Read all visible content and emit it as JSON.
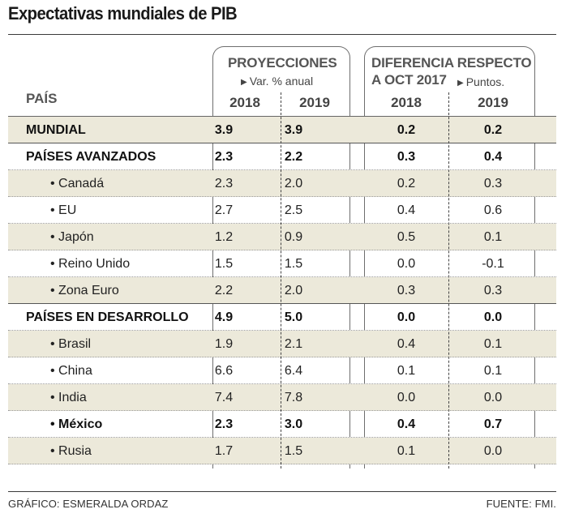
{
  "title": "Expectativas mundiales de PIB",
  "headers": {
    "pais": "PAÍS",
    "group1_title": "PROYECCIONES",
    "group1_sub": "Var. % anual",
    "group2_title_line1": "DIFERENCIA RESPECTO",
    "group2_title_line2": "A OCT 2017",
    "group2_sub": "Puntos.",
    "year_2018": "2018",
    "year_2019": "2019"
  },
  "chart_data": {
    "type": "table",
    "title": "Expectativas mundiales de PIB",
    "columns": [
      "PAÍS",
      "PROYECCIONES 2018",
      "PROYECCIONES 2019",
      "DIFERENCIA RESPECTO A OCT 2017 2018",
      "DIFERENCIA RESPECTO A OCT 2017 2019"
    ],
    "rows": [
      {
        "name": "MUNDIAL",
        "p2018": "3.9",
        "p2019": "3.9",
        "d2018": "0.2",
        "d2019": "0.2",
        "level": "group",
        "bold": true,
        "shaded": true
      },
      {
        "name": "PAÍSES AVANZADOS",
        "p2018": "2.3",
        "p2019": "2.2",
        "d2018": "0.3",
        "d2019": "0.4",
        "level": "group",
        "bold": true,
        "shaded": false
      },
      {
        "name": "• Canadá",
        "p2018": "2.3",
        "p2019": "2.0",
        "d2018": "0.2",
        "d2019": "0.3",
        "level": "sub",
        "bold": false,
        "shaded": true
      },
      {
        "name": "• EU",
        "p2018": "2.7",
        "p2019": "2.5",
        "d2018": "0.4",
        "d2019": "0.6",
        "level": "sub",
        "bold": false,
        "shaded": false
      },
      {
        "name": "• Japón",
        "p2018": "1.2",
        "p2019": "0.9",
        "d2018": "0.5",
        "d2019": "0.1",
        "level": "sub",
        "bold": false,
        "shaded": true
      },
      {
        "name": "• Reino Unido",
        "p2018": "1.5",
        "p2019": "1.5",
        "d2018": "0.0",
        "d2019": "-0.1",
        "level": "sub",
        "bold": false,
        "shaded": false
      },
      {
        "name": "• Zona Euro",
        "p2018": "2.2",
        "p2019": "2.0",
        "d2018": "0.3",
        "d2019": "0.3",
        "level": "sub",
        "bold": false,
        "shaded": true
      },
      {
        "name": "PAÍSES EN DESARROLLO",
        "p2018": "4.9",
        "p2019": "5.0",
        "d2018": "0.0",
        "d2019": "0.0",
        "level": "group",
        "bold": true,
        "shaded": false
      },
      {
        "name": "• Brasil",
        "p2018": "1.9",
        "p2019": "2.1",
        "d2018": "0.4",
        "d2019": "0.1",
        "level": "sub",
        "bold": false,
        "shaded": true
      },
      {
        "name": "• China",
        "p2018": "6.6",
        "p2019": "6.4",
        "d2018": "0.1",
        "d2019": "0.1",
        "level": "sub",
        "bold": false,
        "shaded": false
      },
      {
        "name": "• India",
        "p2018": "7.4",
        "p2019": "7.8",
        "d2018": "0.0",
        "d2019": "0.0",
        "level": "sub",
        "bold": false,
        "shaded": true
      },
      {
        "name": "• México",
        "p2018": "2.3",
        "p2019": "3.0",
        "d2018": "0.4",
        "d2019": "0.7",
        "level": "sub",
        "bold": true,
        "shaded": false
      },
      {
        "name": "• Rusia",
        "p2018": "1.7",
        "p2019": "1.5",
        "d2018": "0.1",
        "d2019": "0.0",
        "level": "sub",
        "bold": false,
        "shaded": true
      }
    ]
  },
  "footer": {
    "left": "GRÁFICO: ESMERALDA ORDAZ",
    "right": "FUENTE: FMI."
  }
}
